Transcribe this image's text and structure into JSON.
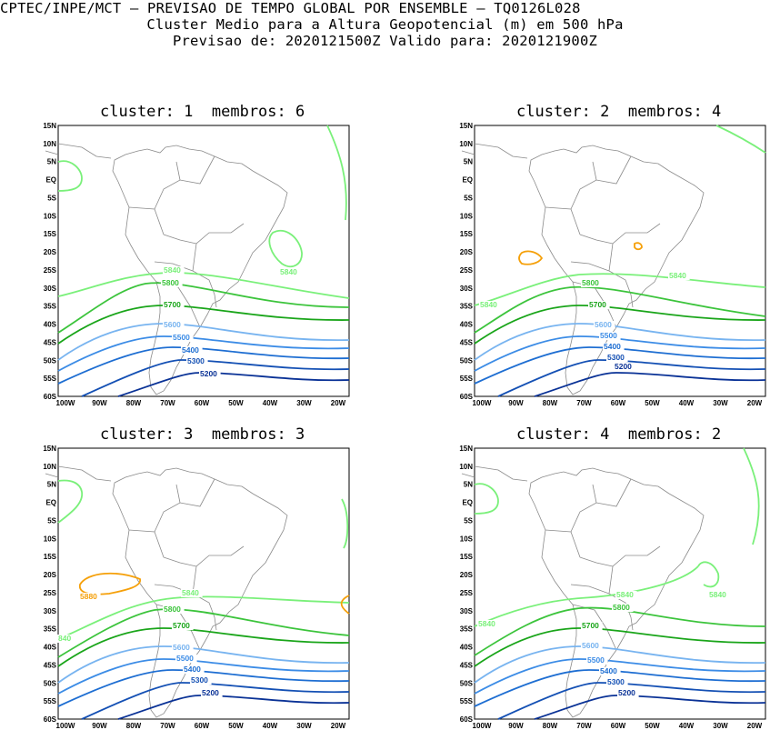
{
  "header": {
    "line1": "CPTEC/INPE/MCT — PREVISAO DE TEMPO GLOBAL POR ENSEMBLE — TQ0126L028",
    "line2": "Cluster Medio para a Altura Geopotencial (m) em 500 hPa",
    "line3": "Previsao de: 2020121500Z   Valido para: 2020121900Z"
  },
  "colors": {
    "c5880": "#f5a00a",
    "c5840": "#7af07a",
    "c5800": "#3cc43c",
    "c5700": "#1aa51a",
    "c5600": "#78b4f0",
    "c5500": "#3c8ce6",
    "c5400": "#1e6ed2",
    "c5300": "#1450b4",
    "c5200": "#0a3296"
  },
  "axes": {
    "lat_labels": [
      "15N",
      "10N",
      "5N",
      "EQ",
      "5S",
      "10S",
      "15S",
      "20S",
      "25S",
      "30S",
      "35S",
      "40S",
      "45S",
      "50S",
      "55S",
      "60S"
    ],
    "lon_labels": [
      "100W",
      "90W",
      "80W",
      "70W",
      "60W",
      "50W",
      "40W",
      "30W",
      "20W"
    ]
  },
  "panels": [
    {
      "cluster_label": "cluster:",
      "cluster": "1",
      "members_label": "membros:",
      "members": "6",
      "contour_labels": {
        "a": "5840",
        "b": "5840",
        "c": "5800",
        "d": "5700",
        "e": "5600",
        "f": "5500",
        "g": "5400",
        "h": "5300",
        "i": "5200"
      }
    },
    {
      "cluster_label": "cluster:",
      "cluster": "2",
      "members_label": "membros:",
      "members": "4",
      "contour_labels": {
        "a": "5840",
        "b": "5840",
        "c": "5800",
        "d": "5700",
        "e": "5600",
        "f": "5500",
        "g": "5400",
        "h": "5300",
        "i": "5200"
      }
    },
    {
      "cluster_label": "cluster:",
      "cluster": "3",
      "members_label": "membros:",
      "members": "3",
      "contour_labels": {
        "a": "5880",
        "b": "5840",
        "c": "5800",
        "d": "5700",
        "e": "5600",
        "f": "5500",
        "g": "5400",
        "h": "5300",
        "i": "5200",
        "j": "840"
      }
    },
    {
      "cluster_label": "cluster:",
      "cluster": "4",
      "members_label": "membros:",
      "members": "2",
      "contour_labels": {
        "a": "5840",
        "b": "5840",
        "c": "5800",
        "d": "5700",
        "e": "5600",
        "f": "5500",
        "g": "5400",
        "h": "5300",
        "i": "5200",
        "j": "5840"
      }
    }
  ]
}
